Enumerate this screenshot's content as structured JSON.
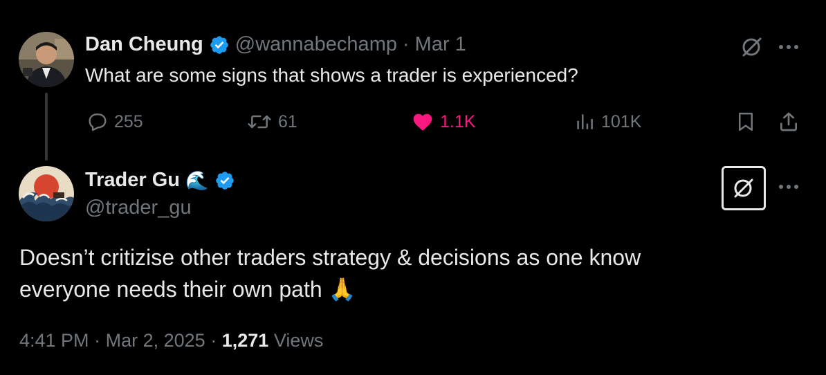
{
  "original_tweet": {
    "author_name": "Dan Cheung",
    "handle": "@wannabechamp",
    "separator": "·",
    "date": "Mar 1",
    "text": "What are some signs that shows a trader is experienced?",
    "stats": {
      "replies": "255",
      "reposts": "61",
      "likes": "1.1K",
      "views": "101K"
    }
  },
  "reply_tweet": {
    "author_name": "Trader Gu",
    "name_emoji": "🌊",
    "handle": "@trader_gu",
    "text_line1": "Doesn’t critizise other traders strategy & decisions as one know",
    "text_line2": "everyone needs their own path",
    "text_emoji": "🙏",
    "timestamp": "4:41 PM",
    "separator": "·",
    "date": "Mar 2, 2025",
    "views_count": "1,271",
    "views_label": "Views"
  },
  "colors": {
    "background": "#000000",
    "text_primary": "#e7e9ea",
    "text_muted": "#71767b",
    "verified": "#1d9bf0",
    "like": "#f91880"
  }
}
